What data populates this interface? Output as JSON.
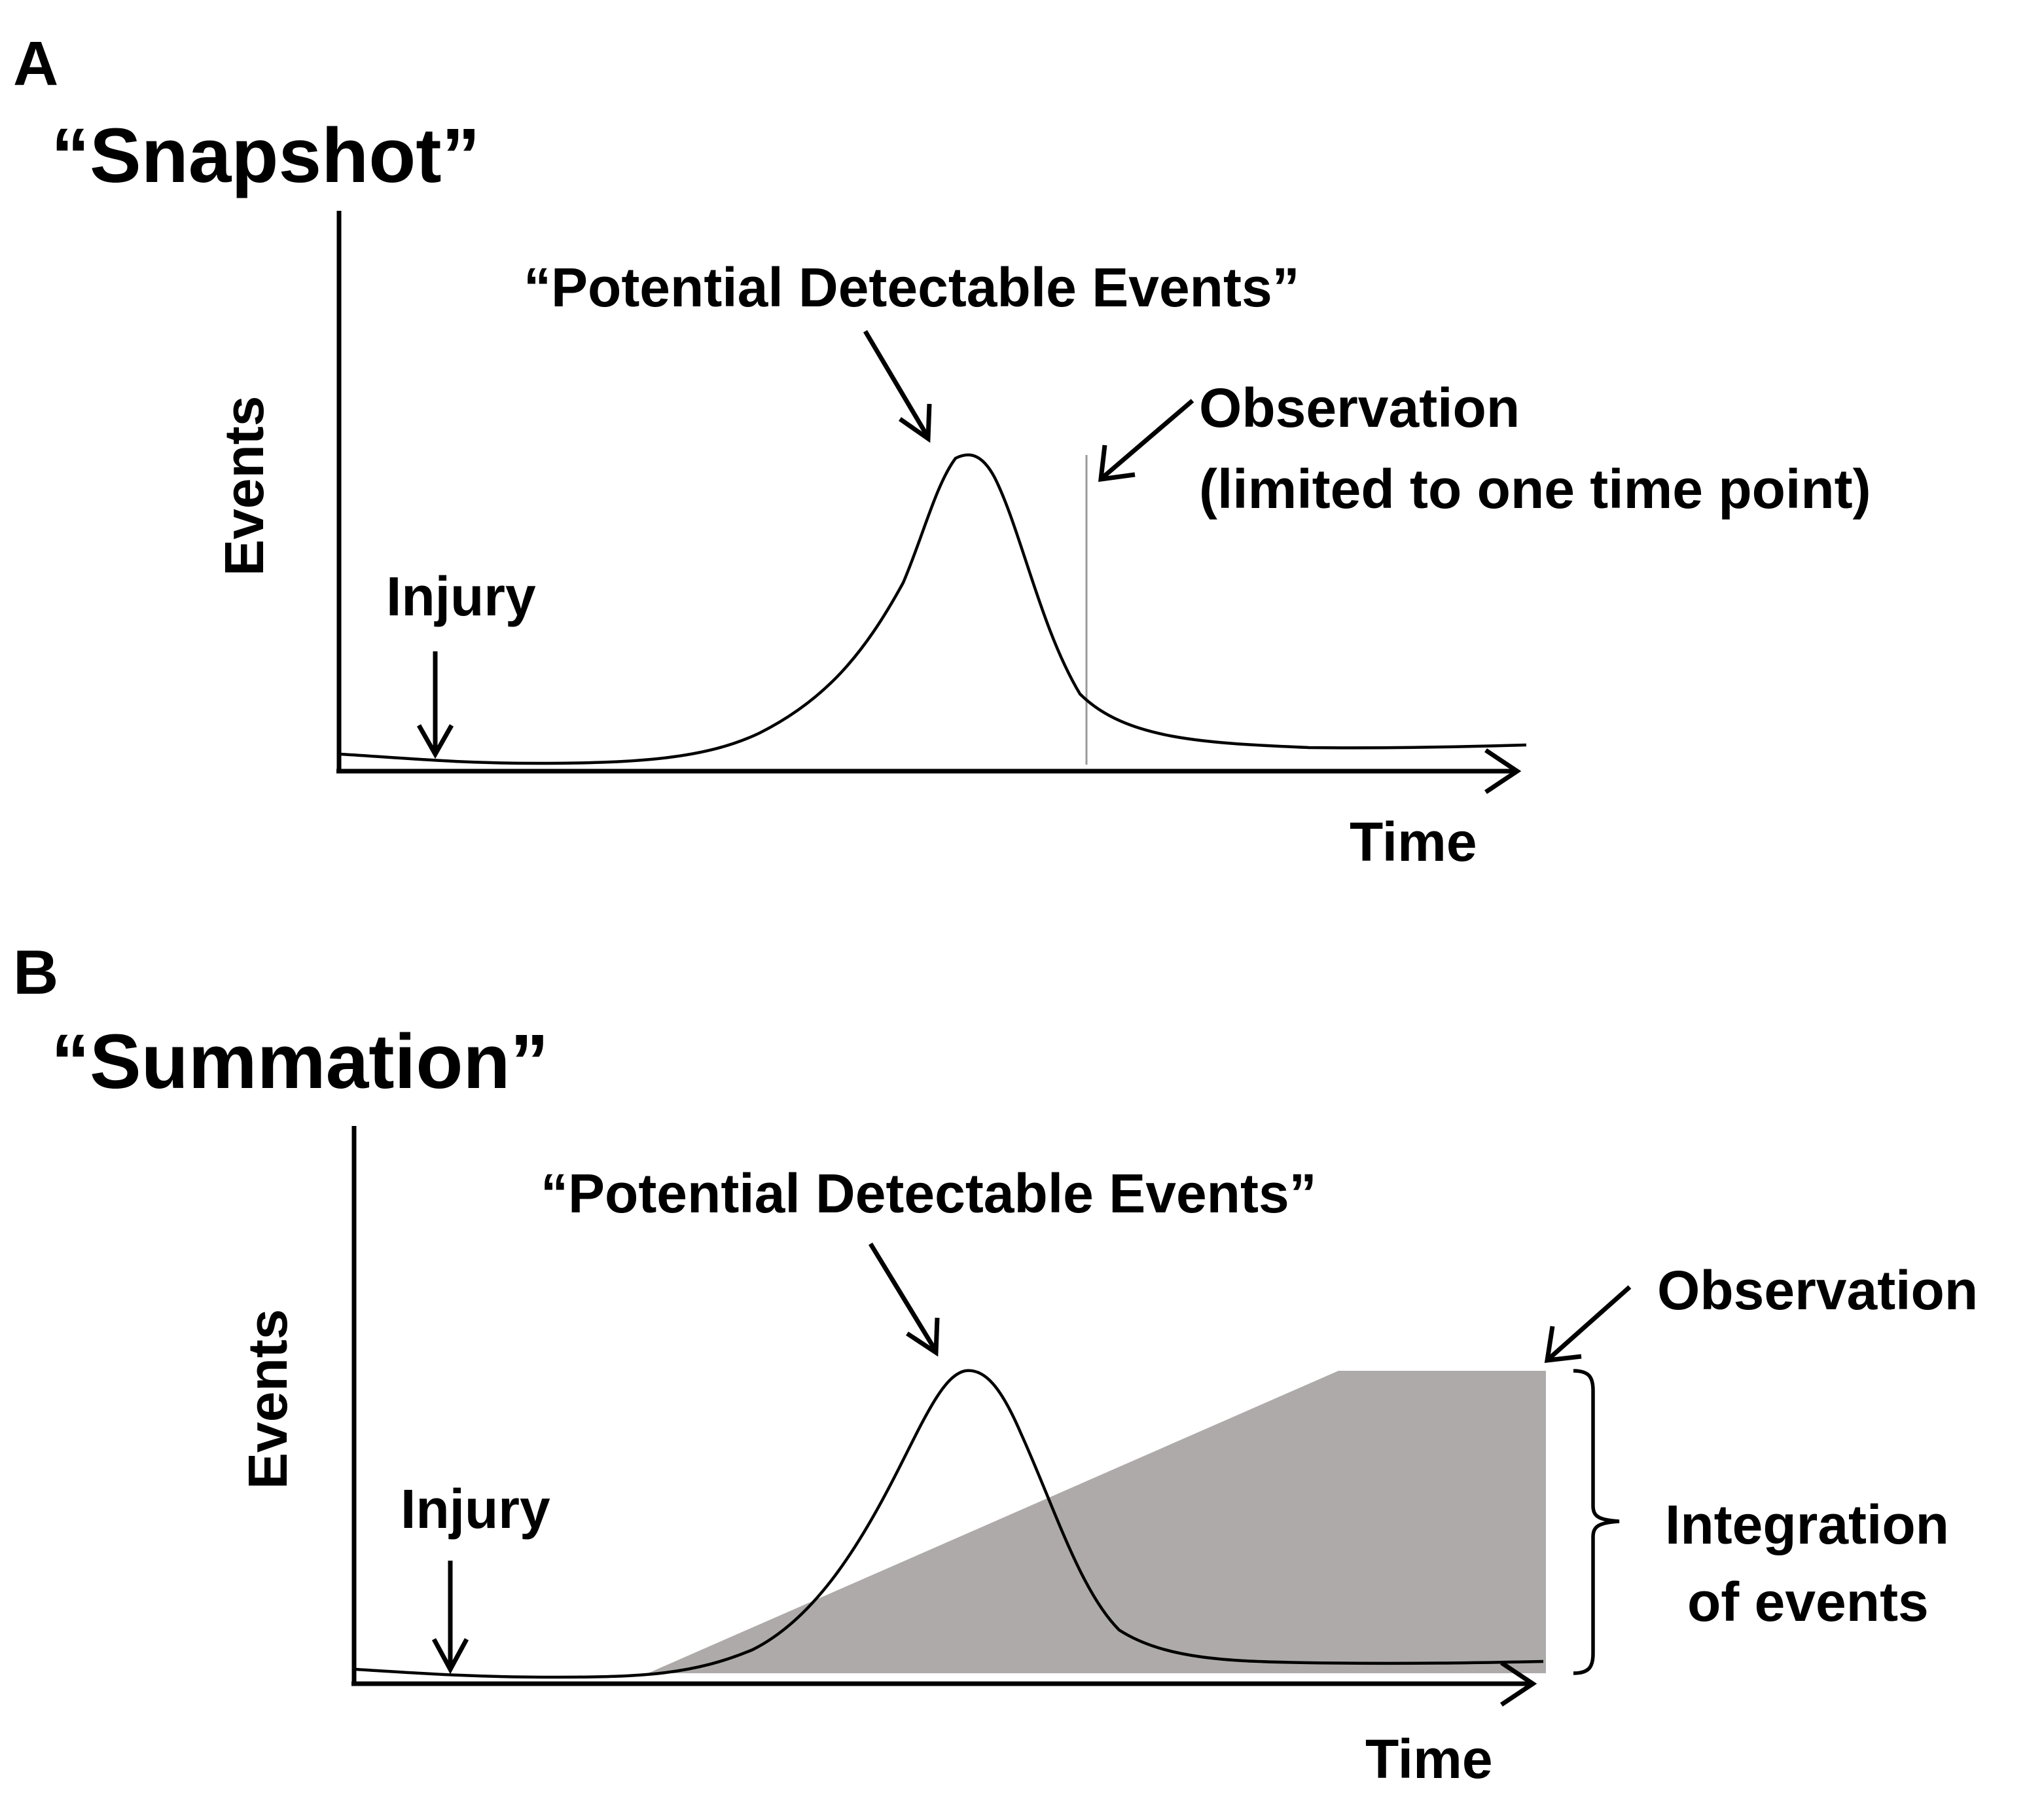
{
  "panel_a": {
    "letter": "A",
    "title": "“Snapshot”",
    "y_axis_label": "Events",
    "x_axis_label": "Time",
    "injury_label": "Injury",
    "peak_label": "“Potential Detectable Events”",
    "observation_label_line1": "Observation",
    "observation_label_line2": "(limited to one time point)"
  },
  "panel_b": {
    "letter": "B",
    "title": "“Summation”",
    "y_axis_label": "Events",
    "x_axis_label": "Time",
    "injury_label": "Injury",
    "peak_label": "“Potential Detectable Events”",
    "observation_label": "Observation",
    "integration_label_line1": "Integration",
    "integration_label_line2": "of events"
  },
  "colors": {
    "integration_area": "#aeaaa9",
    "observation_line": "#9a9a9a",
    "ink": "#000000"
  }
}
